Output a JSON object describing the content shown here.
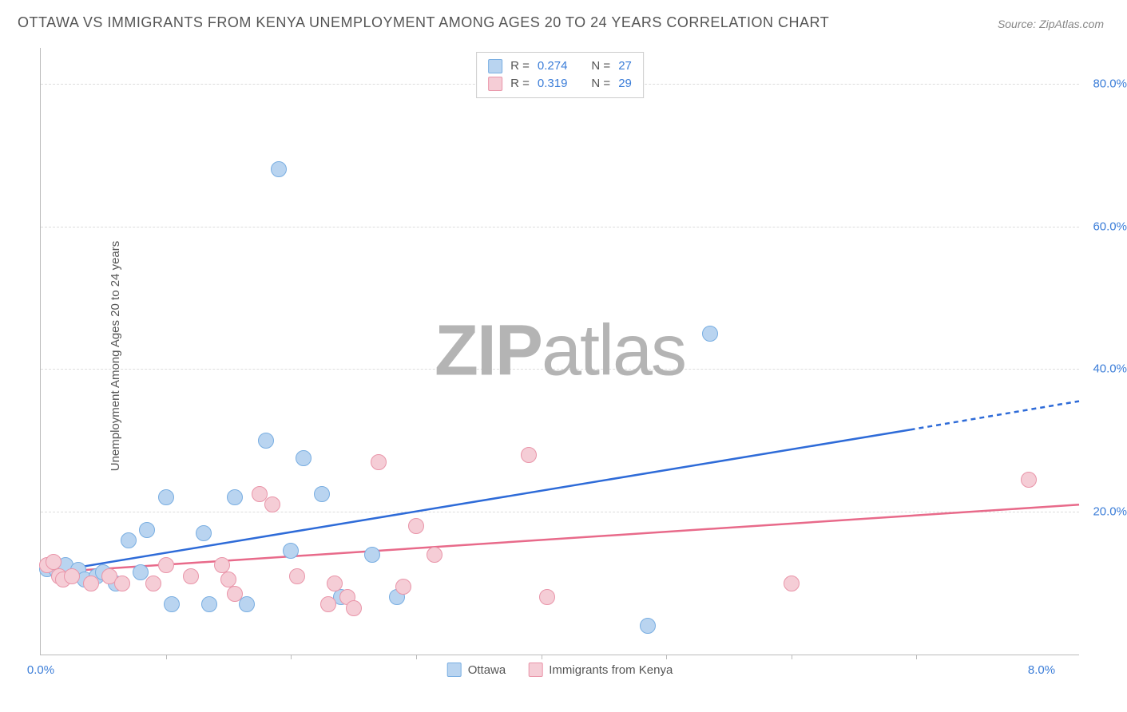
{
  "chart": {
    "type": "scatter",
    "title": "OTTAWA VS IMMIGRANTS FROM KENYA UNEMPLOYMENT AMONG AGES 20 TO 24 YEARS CORRELATION CHART",
    "source": "Source: ZipAtlas.com",
    "ylabel": "Unemployment Among Ages 20 to 24 years",
    "watermark_bold": "ZIP",
    "watermark_light": "atlas",
    "background_color": "#ffffff",
    "grid_color": "#dddddd",
    "axis_color": "#bbbbbb",
    "tick_label_color": "#3b7dd8",
    "xlim": [
      0,
      8.3
    ],
    "ylim": [
      0,
      85
    ],
    "yticks": [
      {
        "value": 20,
        "label": "20.0%"
      },
      {
        "value": 40,
        "label": "40.0%"
      },
      {
        "value": 60,
        "label": "60.0%"
      },
      {
        "value": 80,
        "label": "80.0%"
      }
    ],
    "xticks_labeled": [
      {
        "value": 0,
        "label": "0.0%"
      },
      {
        "value": 8,
        "label": "8.0%"
      }
    ],
    "xticks_unlabeled": [
      1,
      2,
      3,
      4,
      5,
      6,
      7
    ],
    "marker_radius": 9,
    "marker_border_width": 1.5,
    "series": [
      {
        "name": "Ottawa",
        "fill": "#b9d4f0",
        "stroke": "#79aee2",
        "line_color": "#2e6bd8",
        "line_dash_color": "#2e6bd8",
        "R_label": "R =",
        "R": "0.274",
        "N_label": "N =",
        "N": "27",
        "regression": {
          "x1": 0.05,
          "y1": 11.5,
          "x2_solid": 6.95,
          "y2_solid": 31.5,
          "x2_dash": 8.3,
          "y2_dash": 35.5
        },
        "points": [
          {
            "x": 0.05,
            "y": 12.0
          },
          {
            "x": 0.12,
            "y": 12.0
          },
          {
            "x": 0.2,
            "y": 12.5
          },
          {
            "x": 0.3,
            "y": 11.8
          },
          {
            "x": 0.35,
            "y": 10.5
          },
          {
            "x": 0.45,
            "y": 11.0
          },
          {
            "x": 0.5,
            "y": 11.5
          },
          {
            "x": 0.6,
            "y": 10.0
          },
          {
            "x": 0.7,
            "y": 16.0
          },
          {
            "x": 0.8,
            "y": 11.5
          },
          {
            "x": 0.85,
            "y": 17.5
          },
          {
            "x": 1.0,
            "y": 22.0
          },
          {
            "x": 1.05,
            "y": 7.0
          },
          {
            "x": 1.3,
            "y": 17.0
          },
          {
            "x": 1.35,
            "y": 7.0
          },
          {
            "x": 1.55,
            "y": 22.0
          },
          {
            "x": 1.65,
            "y": 7.0
          },
          {
            "x": 1.8,
            "y": 30.0
          },
          {
            "x": 1.9,
            "y": 68.0
          },
          {
            "x": 2.0,
            "y": 14.5
          },
          {
            "x": 2.1,
            "y": 27.5
          },
          {
            "x": 2.25,
            "y": 22.5
          },
          {
            "x": 2.65,
            "y": 14.0
          },
          {
            "x": 2.85,
            "y": 8.0
          },
          {
            "x": 4.85,
            "y": 4.0
          },
          {
            "x": 5.35,
            "y": 45.0
          },
          {
            "x": 2.4,
            "y": 8.0
          }
        ]
      },
      {
        "name": "Immigrants from Kenya",
        "fill": "#f5cdd6",
        "stroke": "#e995a9",
        "line_color": "#e86a8a",
        "R_label": "R =",
        "R": "0.319",
        "N_label": "N =",
        "N": "29",
        "regression": {
          "x1": 0.05,
          "y1": 11.5,
          "x2_solid": 8.3,
          "y2_solid": 21.0
        },
        "points": [
          {
            "x": 0.05,
            "y": 12.5
          },
          {
            "x": 0.1,
            "y": 13.0
          },
          {
            "x": 0.15,
            "y": 11.0
          },
          {
            "x": 0.18,
            "y": 10.5
          },
          {
            "x": 0.25,
            "y": 11.0
          },
          {
            "x": 0.4,
            "y": 10.0
          },
          {
            "x": 0.55,
            "y": 11.0
          },
          {
            "x": 0.65,
            "y": 10.0
          },
          {
            "x": 0.9,
            "y": 10.0
          },
          {
            "x": 1.0,
            "y": 12.5
          },
          {
            "x": 1.2,
            "y": 11.0
          },
          {
            "x": 1.45,
            "y": 12.5
          },
          {
            "x": 1.5,
            "y": 10.5
          },
          {
            "x": 1.55,
            "y": 8.5
          },
          {
            "x": 1.75,
            "y": 22.5
          },
          {
            "x": 1.85,
            "y": 21.0
          },
          {
            "x": 2.05,
            "y": 11.0
          },
          {
            "x": 2.3,
            "y": 7.0
          },
          {
            "x": 2.35,
            "y": 10.0
          },
          {
            "x": 2.45,
            "y": 8.0
          },
          {
            "x": 2.5,
            "y": 6.5
          },
          {
            "x": 2.7,
            "y": 27.0
          },
          {
            "x": 3.0,
            "y": 18.0
          },
          {
            "x": 3.15,
            "y": 14.0
          },
          {
            "x": 3.9,
            "y": 28.0
          },
          {
            "x": 4.05,
            "y": 8.0
          },
          {
            "x": 6.0,
            "y": 10.0
          },
          {
            "x": 7.9,
            "y": 24.5
          },
          {
            "x": 2.9,
            "y": 9.5
          }
        ]
      }
    ]
  }
}
